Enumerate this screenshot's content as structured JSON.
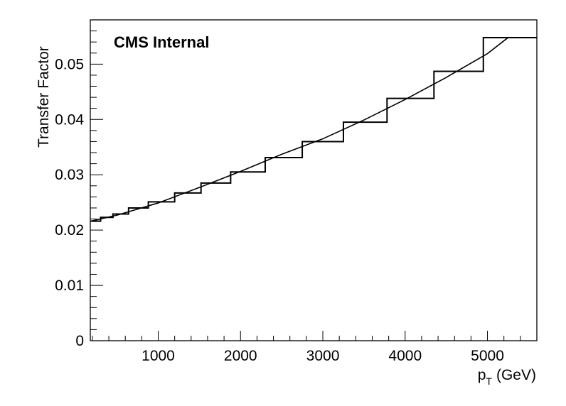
{
  "chart_data": {
    "type": "line",
    "label": "CMS Internal",
    "xlabel": "p",
    "xlabel_subscript": "T",
    "xlabel_unit": "(GeV)",
    "ylabel": "Transfer Factor",
    "xlim": [
      175,
      5600
    ],
    "ylim": [
      0,
      0.058
    ],
    "x_ticks": [
      1000,
      2000,
      3000,
      4000,
      5000
    ],
    "y_ticks": [
      0,
      0.01,
      0.02,
      0.03,
      0.04,
      0.05
    ],
    "y_tick_labels": [
      "0",
      "0.01",
      "0.02",
      "0.03",
      "0.04",
      "0.05"
    ],
    "histogram": {
      "bin_edges": [
        175,
        300,
        450,
        640,
        880,
        1200,
        1520,
        1880,
        2300,
        2750,
        3250,
        3780,
        4350,
        4950,
        5600
      ],
      "values": [
        0.0216,
        0.0223,
        0.0229,
        0.024,
        0.0251,
        0.0267,
        0.0285,
        0.0305,
        0.0331,
        0.036,
        0.0395,
        0.0438,
        0.0487,
        0.0548
      ]
    },
    "fit_curve": {
      "x": [
        175,
        500,
        1000,
        1500,
        2000,
        2500,
        3000,
        3500,
        4000,
        4500,
        5000,
        5250
      ],
      "y": [
        0.0216,
        0.0227,
        0.0249,
        0.0277,
        0.0306,
        0.0337,
        0.0365,
        0.0399,
        0.0436,
        0.0476,
        0.0519,
        0.0548
      ]
    }
  }
}
